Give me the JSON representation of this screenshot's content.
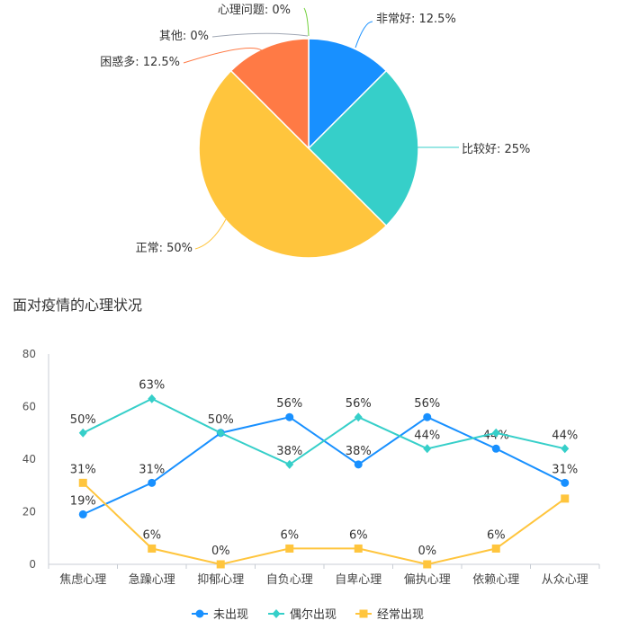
{
  "chart_data": [
    {
      "type": "pie",
      "slices": [
        {
          "label": "非常好: 12.5%",
          "value": 12.5,
          "color": "#1890ff"
        },
        {
          "label": "比较好: 25%",
          "value": 25,
          "color": "#36cfc9"
        },
        {
          "label": "正常: 50%",
          "value": 50,
          "color": "#ffc53d"
        },
        {
          "label": "困惑多: 12.5%",
          "value": 12.5,
          "color": "#ff7a45"
        },
        {
          "label": "其他: 0%",
          "value": 0,
          "color": "#a0a7b4"
        },
        {
          "label": "心理问题: 0%",
          "value": 0,
          "color": "#73d13d"
        }
      ]
    },
    {
      "type": "line",
      "title": "面对疫情的心理状况",
      "categories": [
        "焦虑心理",
        "急躁心理",
        "抑郁心理",
        "自负心理",
        "自卑心理",
        "偏执心理",
        "依赖心理",
        "从众心理"
      ],
      "ylim": [
        0,
        80
      ],
      "yticks": [
        0,
        20,
        40,
        60,
        80
      ],
      "legend_position": "bottom",
      "series": [
        {
          "name": "未出现",
          "color": "#1890ff",
          "marker": "circle",
          "values": [
            19,
            31,
            50,
            56,
            38,
            56,
            44,
            31
          ],
          "labels": [
            "19%",
            "31%",
            "",
            "56%",
            "38%",
            "56%",
            "44%",
            "31%"
          ]
        },
        {
          "name": "偶尔出现",
          "color": "#36cfc9",
          "marker": "diamond",
          "values": [
            50,
            63,
            50,
            38,
            56,
            44,
            50,
            44
          ],
          "labels": [
            "50%",
            "63%",
            "50%",
            "38%",
            "56%",
            "44%",
            "",
            "44%"
          ]
        },
        {
          "name": "经常出现",
          "color": "#ffc53d",
          "marker": "square",
          "values": [
            31,
            6,
            0,
            6,
            6,
            0,
            6,
            25
          ],
          "labels": [
            "31%",
            "6%",
            "0%",
            "6%",
            "6%",
            "0%",
            "6%",
            ""
          ]
        }
      ]
    }
  ]
}
